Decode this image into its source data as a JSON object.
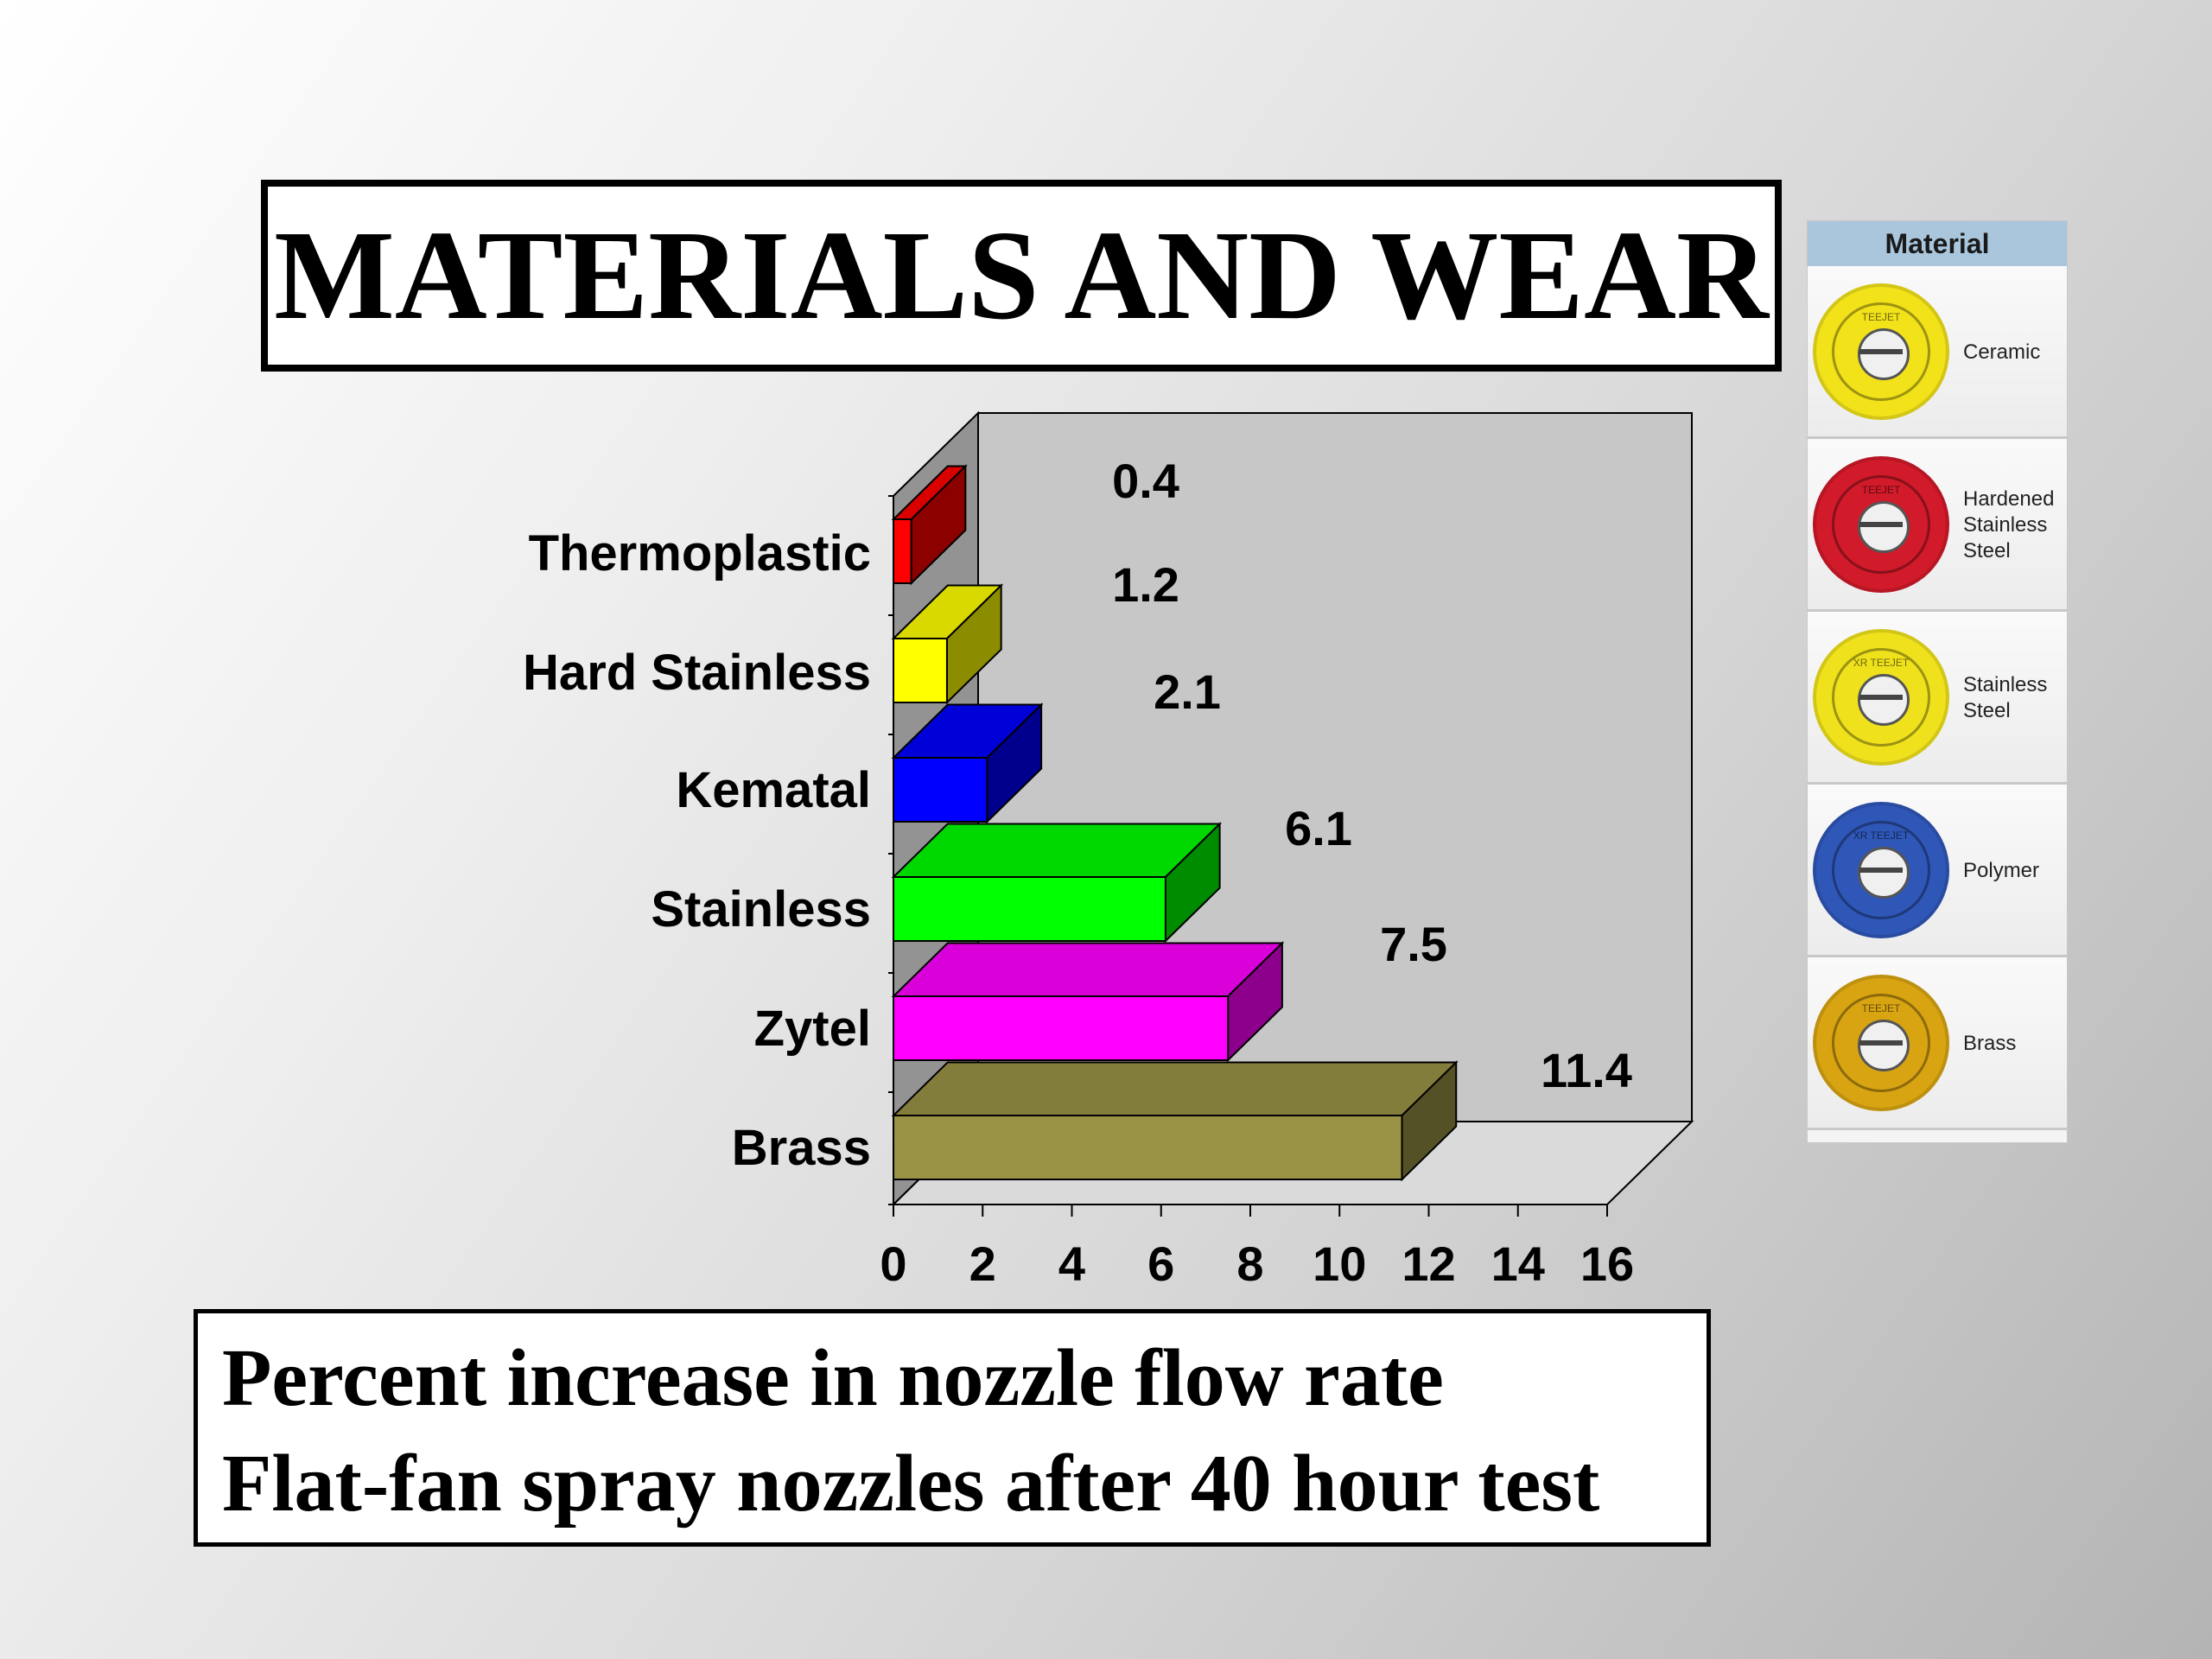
{
  "title": "MATERIALS AND WEAR",
  "caption": {
    "line1": "Percent increase in nozzle flow rate",
    "line2": "Flat-fan spray nozzles after 40 hour test"
  },
  "chart_data": {
    "type": "bar",
    "orientation": "horizontal",
    "style": "3d",
    "categories": [
      "Thermoplastic",
      "Hard Stainless",
      "Kematal",
      "Stainless",
      "Zytel",
      "Brass"
    ],
    "values": [
      0.4,
      1.2,
      2.1,
      6.1,
      7.5,
      11.4
    ],
    "value_labels": [
      "0.4",
      "1.2",
      "2.1",
      "6.1",
      "7.5",
      "11.4"
    ],
    "colors": [
      "#ff0000",
      "#ffff00",
      "#0000ff",
      "#00ff00",
      "#ff00ff",
      "#9a9346"
    ],
    "xlim": [
      0,
      16
    ],
    "xticks": [
      "0",
      "2",
      "4",
      "6",
      "8",
      "10",
      "12",
      "14",
      "16"
    ],
    "xlabel": "",
    "ylabel": "",
    "grid": false
  },
  "legend_panel": {
    "header": "Material",
    "items": [
      {
        "label": "Ceramic",
        "color": "#f1e21a",
        "icon": "nozzle-tip-icon",
        "brand": "TEEJET"
      },
      {
        "label": "Hardened Stainless Steel",
        "color": "#d11a2a",
        "icon": "nozzle-tip-icon",
        "brand": "TEEJET"
      },
      {
        "label": "Stainless Steel",
        "color": "#efe21c",
        "icon": "nozzle-tip-icon",
        "brand": "XR TEEJET"
      },
      {
        "label": "Polymer",
        "color": "#2f57b8",
        "icon": "nozzle-tip-icon",
        "brand": "XR TEEJET"
      },
      {
        "label": "Brass",
        "color": "#d8a412",
        "icon": "nozzle-tip-icon",
        "brand": "TEEJET"
      }
    ]
  }
}
